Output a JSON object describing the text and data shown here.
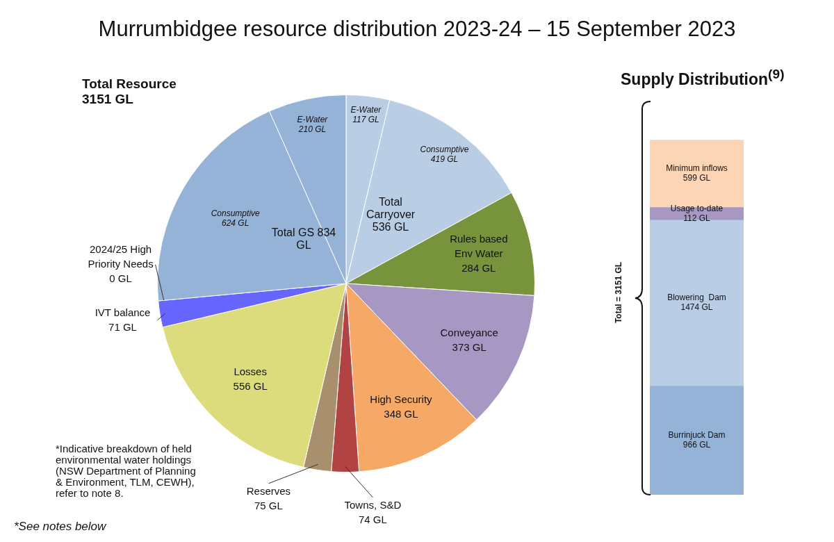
{
  "chart_data": [
    {
      "type": "pie",
      "title": "Murrumbidgee resource distribution 2023-24 – 15 September 2023",
      "categories": [
        "E-Water",
        "Consumptive",
        "Rules based Env Water",
        "Conveyance",
        "High Security",
        "Towns, S&D",
        "Reserves",
        "Losses",
        "IVT balance",
        "2024/25 High Priority Needs",
        "Consumptive",
        "E-Water"
      ],
      "values": [
        117,
        419,
        284,
        373,
        348,
        74,
        75,
        556,
        71,
        0,
        624,
        210
      ],
      "value_labels": [
        "117 GL",
        "419 GL",
        "284 GL",
        "373 GL",
        "348 GL",
        "74 GL",
        "75 GL",
        "556 GL",
        "71 GL",
        "0 GL",
        "624 GL",
        "210 GL"
      ],
      "colors": [
        "#b9cde5",
        "#b9cde5",
        "#77933c",
        "#a797c3",
        "#f6a866",
        "#b14343",
        "#a8906e",
        "#dcdc7c",
        "#6666ff",
        "#ffffff",
        "#95b3d7",
        "#95b3d7"
      ],
      "annotations": [
        "Total Resource 3151 GL",
        "Total Carryover 536 GL",
        "Total GS 834 GL",
        "*Indicative breakdown of held environmental water holdings (NSW Department of Planning & Environment, TLM, CEWH), refer to note 8.",
        "*See notes below"
      ]
    },
    {
      "type": "bar",
      "title": "Supply Distribution$^{(9)}$",
      "ylabel": "Total = 3151 GL",
      "categories": [
        null
      ],
      "stacked": true,
      "tick_labels": false,
      "series": [
        {
          "name": "Burrinjuck Dam",
          "color": "#95b3d7",
          "values": [
            966
          ],
          "value_labels": [
            "966 GL"
          ]
        },
        {
          "name": "Blowering  Dam",
          "color": "#b9cde5",
          "values": [
            1474
          ],
          "value_labels": [
            "1474 GL"
          ]
        },
        {
          "name": "Usage to-date",
          "color": "#a797c3",
          "values": [
            112
          ],
          "value_labels": [
            "112 GL"
          ]
        },
        {
          "name": "Minimum inflows",
          "color": "#fbd5b5",
          "values": [
            599
          ],
          "value_labels": [
            "599 GL"
          ]
        }
      ]
    }
  ]
}
